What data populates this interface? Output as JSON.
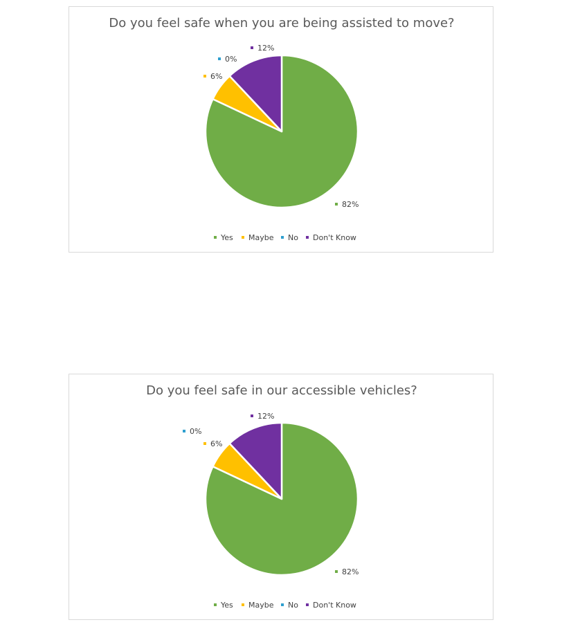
{
  "chart_data": [
    {
      "type": "pie",
      "title": "Do you feel safe when you are being assisted to move?",
      "categories": [
        "Yes",
        "Maybe",
        "No",
        "Don't Know"
      ],
      "values": [
        82,
        6,
        0,
        12
      ],
      "labels": [
        "82%",
        "6%",
        "0%",
        "12%"
      ],
      "colors": [
        "#70AD47",
        "#FFC000",
        "#2E9FCF",
        "#7030A0"
      ],
      "legend": "bottom"
    },
    {
      "type": "pie",
      "title": "Do you feel safe in our accessible vehicles?",
      "categories": [
        "Yes",
        "Maybe",
        "No",
        "Don't Know"
      ],
      "values": [
        82,
        6,
        0,
        12
      ],
      "labels": [
        "82%",
        "6%",
        "0%",
        "12%"
      ],
      "colors": [
        "#70AD47",
        "#FFC000",
        "#2E9FCF",
        "#7030A0"
      ],
      "legend": "bottom"
    }
  ]
}
